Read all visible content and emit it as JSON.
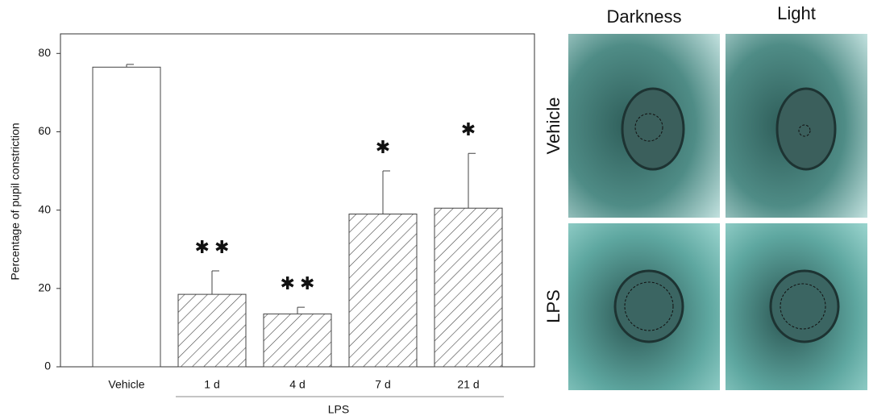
{
  "chart_data": {
    "type": "bar",
    "y_label": "Percentage of pupil constriction",
    "categories": [
      "Vehicle",
      "1 d",
      "4 d",
      "7 d",
      "21 d"
    ],
    "values": [
      76.5,
      18.5,
      13.5,
      39,
      40.5
    ],
    "errors": [
      0.7,
      6,
      1.7,
      11,
      14
    ],
    "hatched": [
      false,
      true,
      true,
      true,
      true
    ],
    "significance": [
      null,
      "✱ ✱",
      "✱ ✱",
      "✱",
      "✱"
    ],
    "group_label": "LPS",
    "color": "#ffffff",
    "ylim": [
      0,
      85
    ],
    "yticks": [
      0,
      20,
      40,
      60,
      80
    ]
  },
  "panels": {
    "columns": [
      "Darkness",
      "Light"
    ],
    "rows": [
      "Vehicle",
      "LPS"
    ]
  }
}
